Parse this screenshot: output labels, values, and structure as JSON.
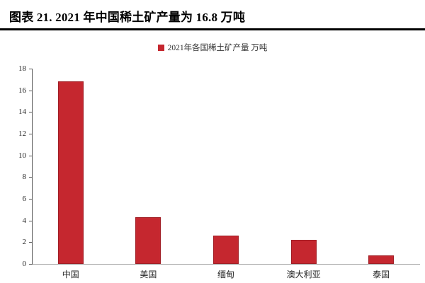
{
  "header": {
    "title": "图表 21. 2021 年中国稀土矿产量为 16.8 万吨"
  },
  "legend": {
    "label": "2021年各国稀土矿产量 万吨",
    "marker_color": "#C5272F"
  },
  "chart_data": {
    "type": "bar",
    "title": "2021年各国稀土矿产量 万吨",
    "categories": [
      "中国",
      "美国",
      "缅甸",
      "澳大利亚",
      "泰国"
    ],
    "values": [
      16.8,
      4.3,
      2.6,
      2.2,
      0.8
    ],
    "xlabel": "",
    "ylabel": "",
    "ylim": [
      0,
      18
    ],
    "ytick_step": 2,
    "ytick_labels": [
      "0",
      "2",
      "4",
      "6",
      "8",
      "10",
      "12",
      "14",
      "16",
      "18"
    ],
    "bar_color": "#C5272F",
    "axis_color": "#595959",
    "baseline_color": "#A6A6A6",
    "grid": false,
    "legend_position": "top-center"
  }
}
